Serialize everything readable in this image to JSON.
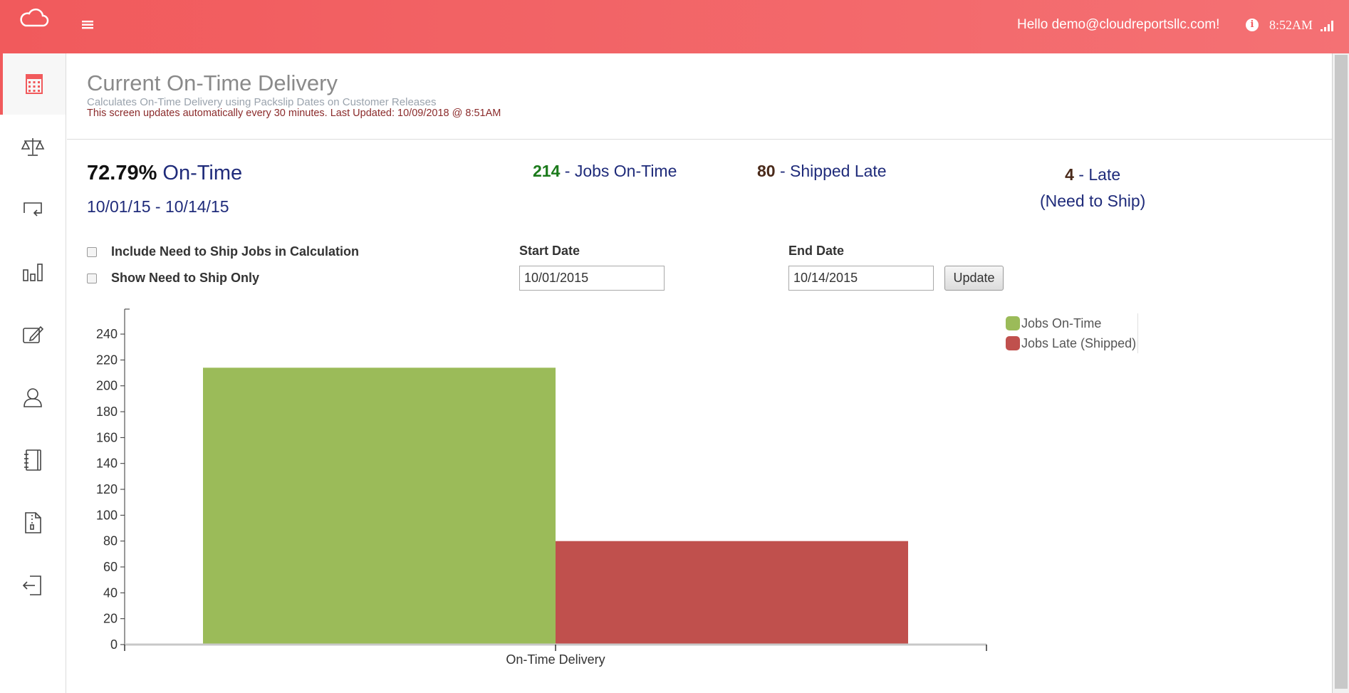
{
  "header": {
    "greeting": "Hello demo@cloudreportsllc.com!",
    "time": "8:52AM"
  },
  "sidebar": {
    "items": [
      {
        "icon": "calculator-icon",
        "active": true
      },
      {
        "icon": "scale-icon",
        "active": false
      },
      {
        "icon": "return-icon",
        "active": false
      },
      {
        "icon": "bar-chart-icon",
        "active": false
      },
      {
        "icon": "edit-icon",
        "active": false
      },
      {
        "icon": "user-icon",
        "active": false
      },
      {
        "icon": "notebook-icon",
        "active": false
      },
      {
        "icon": "zip-file-icon",
        "active": false
      },
      {
        "icon": "logout-icon",
        "active": false
      }
    ]
  },
  "page": {
    "title": "Current On-Time Delivery",
    "subtitle": "Calculates On-Time Delivery using Packslip Dates on Customer Releases",
    "note": "This screen updates automatically every 30 minutes. Last Updated: 10/09/2018 @ 8:51AM"
  },
  "summary": {
    "percent": "72.79%",
    "percent_label": "On-Time",
    "range": "10/01/15 - 10/14/15",
    "on_time_count": "214",
    "on_time_label": "- Jobs On-Time",
    "shipped_late_count": "80",
    "shipped_late_label": "- Shipped Late",
    "late_count": "4",
    "late_label": "- Late",
    "late_sub": "(Need to Ship)"
  },
  "filters": {
    "include_need_to_ship": "Include Need to Ship Jobs in Calculation",
    "show_need_to_ship_only": "Show Need to Ship Only",
    "start_date_label": "Start Date",
    "start_date_value": "10/01/2015",
    "end_date_label": "End Date",
    "end_date_value": "10/14/2015",
    "update_label": "Update"
  },
  "colors": {
    "accent": "#f15a5c",
    "on_time": "#9bbb59",
    "late": "#c0504d"
  },
  "chart_data": {
    "type": "bar",
    "categories": [
      "On-Time Delivery"
    ],
    "series": [
      {
        "name": "Jobs On-Time",
        "values": [
          214
        ],
        "color": "#9bbb59"
      },
      {
        "name": "Jobs Late (Shipped)",
        "values": [
          80
        ],
        "color": "#c0504d"
      }
    ],
    "yticks": [
      0,
      20,
      40,
      60,
      80,
      100,
      120,
      140,
      160,
      180,
      200,
      220,
      240
    ],
    "ylim": [
      0,
      256
    ],
    "grid": false,
    "legend": "top-right"
  }
}
